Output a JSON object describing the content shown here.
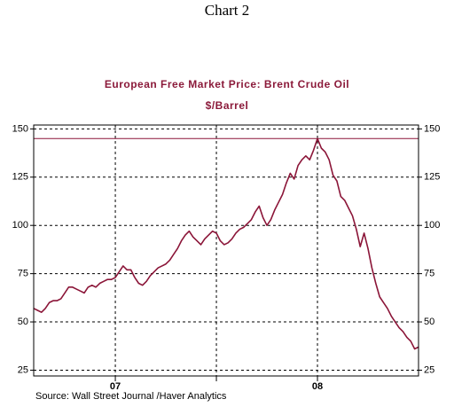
{
  "header": "Chart 2",
  "chart_data": {
    "type": "line",
    "title": "European Free Market Price: Brent Crude Oil",
    "subtitle": "$/Barrel",
    "source": "Source:  Wall Street Journal /Haver Analytics",
    "color": "#8b1538",
    "values": [
      57,
      56,
      55,
      57,
      60,
      61,
      61,
      62,
      65,
      68,
      68,
      67,
      66,
      65,
      68,
      69,
      68,
      70,
      71,
      72,
      72,
      73,
      76,
      79,
      77,
      77,
      73,
      70,
      69,
      71,
      74,
      76,
      78,
      79,
      80,
      82,
      85,
      88,
      92,
      95,
      97,
      94,
      92,
      90,
      93,
      95,
      97,
      96,
      92,
      90,
      91,
      93,
      96,
      98,
      99,
      101,
      103,
      107,
      110,
      104,
      100,
      103,
      108,
      112,
      116,
      122,
      127,
      124,
      131,
      134,
      136,
      134,
      139,
      145,
      140,
      138,
      134,
      126,
      123,
      115,
      113,
      109,
      105,
      98,
      89,
      96,
      88,
      78,
      70,
      63,
      60,
      57,
      53,
      50,
      47,
      45,
      42,
      40,
      36,
      37
    ],
    "xlim": [
      0,
      99
    ],
    "xticks": [
      {
        "value": 21,
        "label": "07"
      },
      {
        "value": 47,
        "label": null
      },
      {
        "value": 73,
        "label": "08"
      }
    ],
    "ylim": [
      22,
      152
    ],
    "yticks": [
      25,
      50,
      75,
      100,
      125,
      150
    ],
    "hline": 145,
    "grid": true
  }
}
